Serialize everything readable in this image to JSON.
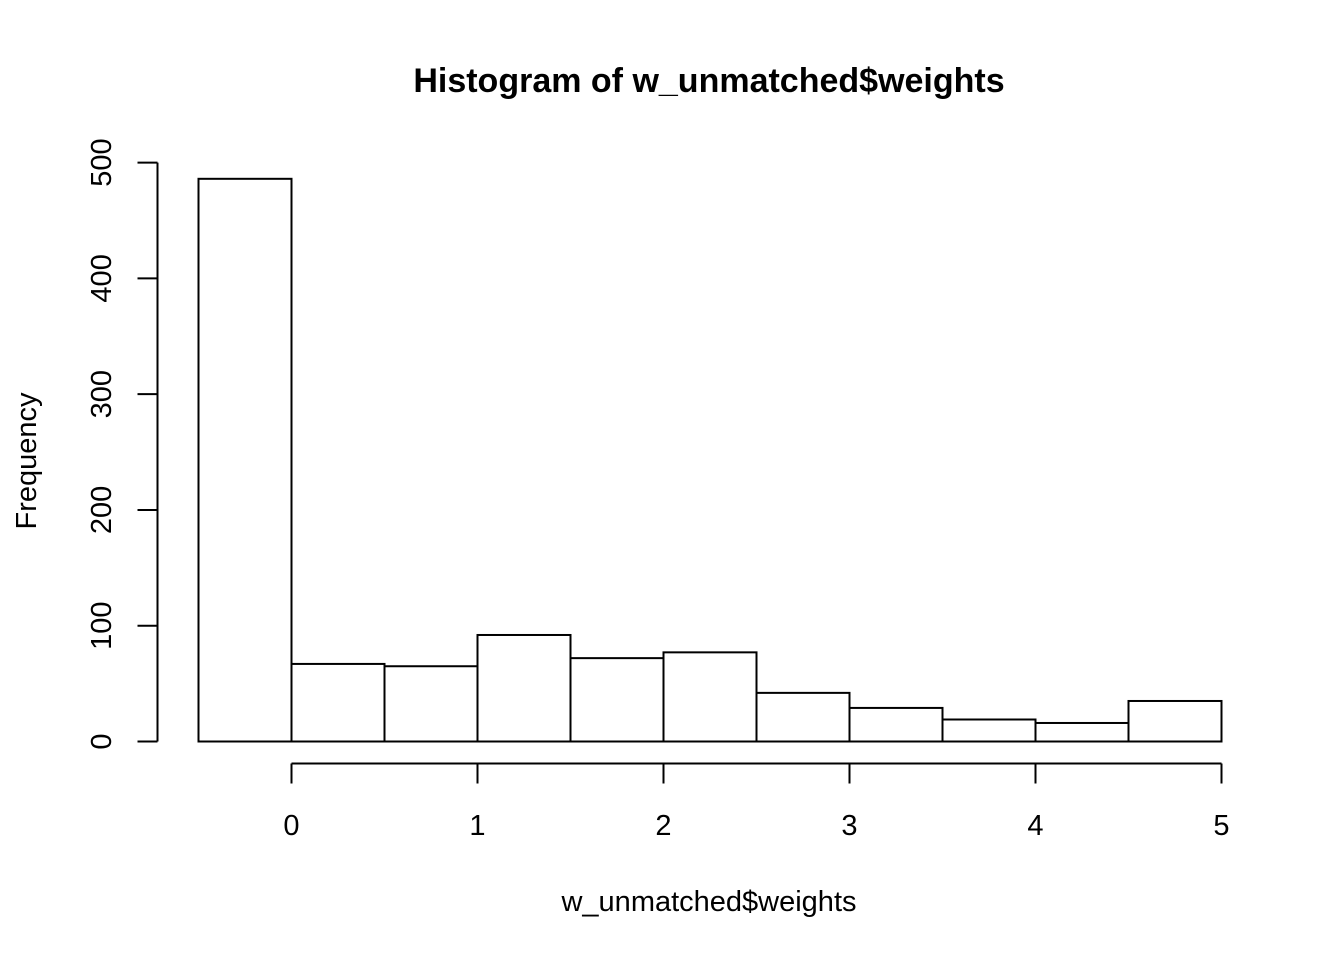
{
  "chart_data": {
    "type": "bar",
    "title": "Histogram of w_unmatched$weights",
    "xlabel": "w_unmatched$weights",
    "ylabel": "Frequency",
    "bins": [
      {
        "start": -0.5,
        "end": 0.0,
        "count": 486
      },
      {
        "start": 0.0,
        "end": 0.5,
        "count": 67
      },
      {
        "start": 0.5,
        "end": 1.0,
        "count": 65
      },
      {
        "start": 1.0,
        "end": 1.5,
        "count": 92
      },
      {
        "start": 1.5,
        "end": 2.0,
        "count": 72
      },
      {
        "start": 2.0,
        "end": 2.5,
        "count": 77
      },
      {
        "start": 2.5,
        "end": 3.0,
        "count": 42
      },
      {
        "start": 3.0,
        "end": 3.5,
        "count": 29
      },
      {
        "start": 3.5,
        "end": 4.0,
        "count": 19
      },
      {
        "start": 4.0,
        "end": 4.5,
        "count": 16
      },
      {
        "start": 4.5,
        "end": 5.0,
        "count": 35
      }
    ],
    "xlim": [
      -0.5,
      5
    ],
    "ylim": [
      0,
      500
    ],
    "x_ticks": [
      0,
      1,
      2,
      3,
      4,
      5
    ],
    "x_tick_labels": [
      "0",
      "1",
      "2",
      "3",
      "4",
      "5"
    ],
    "y_ticks": [
      0,
      100,
      200,
      300,
      400,
      500
    ],
    "y_tick_labels": [
      "0",
      "100",
      "200",
      "300",
      "400",
      "500"
    ],
    "grid": false,
    "colors": {
      "bar_fill": "#ffffff",
      "bar_stroke": "#000000",
      "axis": "#000000",
      "text": "#000000"
    }
  }
}
